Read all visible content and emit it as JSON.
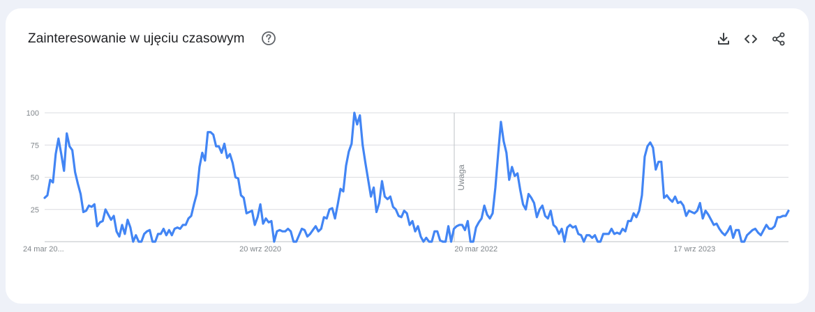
{
  "header": {
    "title": "Zainteresowanie w ujęciu czasowym",
    "help_icon": "help-circle-icon",
    "tools": [
      {
        "name": "download-icon",
        "label": "download"
      },
      {
        "name": "embed-code-icon",
        "label": "embed"
      },
      {
        "name": "share-icon",
        "label": "share"
      }
    ]
  },
  "colors": {
    "line": "#4285f4",
    "grid": "#dadce0",
    "axis": "#bdc1c6",
    "text": "#80868b",
    "background": "#eef1f8"
  },
  "chart_data": {
    "type": "line",
    "title": "",
    "xlabel": "",
    "ylabel": "",
    "ylim": [
      0,
      100
    ],
    "y_ticks": [
      "25",
      "50",
      "75",
      "100"
    ],
    "x_ticks": [
      "24 mar 20...",
      "20 wrz 2020",
      "20 mar 2022",
      "17 wrz 2023"
    ],
    "grid": true,
    "annotation": {
      "label": "Uwaga"
    },
    "series": [
      {
        "values": [
          34,
          36,
          48,
          46,
          68,
          80,
          68,
          55,
          84,
          74,
          71,
          54,
          45,
          37,
          23,
          24,
          28,
          27,
          29,
          12,
          15,
          16,
          25,
          21,
          17,
          20,
          8,
          4,
          13,
          6,
          17,
          11,
          0,
          5,
          0,
          0,
          6,
          8,
          9,
          0,
          0,
          6,
          6,
          10,
          5,
          9,
          5,
          10,
          11,
          10,
          13,
          13,
          18,
          20,
          29,
          37,
          58,
          69,
          63,
          85,
          85,
          83,
          74,
          74,
          69,
          76,
          65,
          68,
          61,
          50,
          49,
          36,
          34,
          22,
          23,
          24,
          13,
          19,
          29,
          14,
          18,
          15,
          16,
          0,
          8,
          9,
          8,
          8,
          10,
          8,
          0,
          0,
          5,
          10,
          9,
          4,
          6,
          9,
          12,
          8,
          10,
          19,
          18,
          25,
          26,
          18,
          29,
          41,
          39,
          59,
          70,
          76,
          100,
          91,
          98,
          75,
          61,
          48,
          35,
          42,
          23,
          30,
          47,
          35,
          33,
          35,
          27,
          25,
          20,
          19,
          24,
          22,
          13,
          16,
          8,
          12,
          4,
          0,
          3,
          0,
          0,
          8,
          8,
          1,
          0,
          0,
          12,
          0,
          10,
          12,
          13,
          13,
          9,
          16,
          0,
          0,
          11,
          15,
          18,
          28,
          21,
          18,
          22,
          42,
          68,
          93,
          78,
          69,
          48,
          58,
          51,
          53,
          40,
          29,
          25,
          37,
          34,
          30,
          19,
          25,
          28,
          20,
          18,
          24,
          13,
          11,
          6,
          10,
          0,
          11,
          13,
          11,
          12,
          6,
          5,
          0,
          5,
          5,
          3,
          5,
          0,
          0,
          6,
          6,
          6,
          10,
          6,
          7,
          6,
          10,
          8,
          16,
          16,
          22,
          19,
          24,
          36,
          66,
          74,
          77,
          73,
          56,
          62,
          62,
          34,
          36,
          33,
          31,
          35,
          30,
          31,
          28,
          20,
          24,
          23,
          22,
          24,
          30,
          18,
          24,
          21,
          17,
          13,
          14,
          10,
          7,
          5,
          8,
          12,
          3,
          9,
          9,
          0,
          0,
          5,
          7,
          9,
          10,
          7,
          5,
          9,
          13,
          10,
          10,
          12,
          19,
          19,
          20,
          20,
          24
        ]
      }
    ]
  }
}
